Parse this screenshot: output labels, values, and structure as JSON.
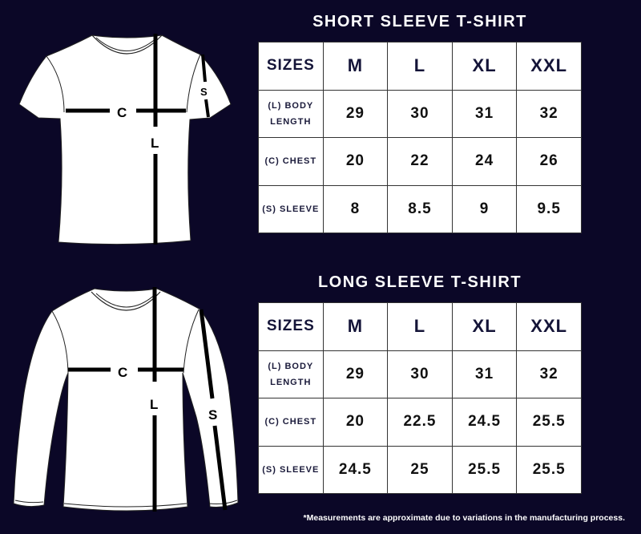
{
  "short_sleeve": {
    "title": "SHORT SLEEVE T-SHIRT",
    "diagram_labels": {
      "chest": "C",
      "length": "L",
      "sleeve": "S"
    },
    "headers": [
      "SIZES",
      "M",
      "L",
      "XL",
      "XXL"
    ],
    "rows": [
      {
        "label_line1": "(L) BODY",
        "label_line2": "LENGTH",
        "values": [
          "29",
          "30",
          "31",
          "32"
        ]
      },
      {
        "label_line1": "(C) CHEST",
        "label_line2": "",
        "values": [
          "20",
          "22",
          "24",
          "26"
        ]
      },
      {
        "label_line1": "(S) SLEEVE",
        "label_line2": "",
        "values": [
          "8",
          "8.5",
          "9",
          "9.5"
        ]
      }
    ]
  },
  "long_sleeve": {
    "title": "LONG SLEEVE T-SHIRT",
    "diagram_labels": {
      "chest": "C",
      "length": "L",
      "sleeve": "S"
    },
    "headers": [
      "SIZES",
      "M",
      "L",
      "XL",
      "XXL"
    ],
    "rows": [
      {
        "label_line1": "(L) BODY",
        "label_line2": "LENGTH",
        "values": [
          "29",
          "30",
          "31",
          "32"
        ]
      },
      {
        "label_line1": "(C) CHEST",
        "label_line2": "",
        "values": [
          "20",
          "22.5",
          "24.5",
          "25.5"
        ]
      },
      {
        "label_line1": "(S) SLEEVE",
        "label_line2": "",
        "values": [
          "24.5",
          "25",
          "25.5",
          "25.5"
        ]
      }
    ]
  },
  "footnote": "*Measurements are approximate due to variations in the manufacturing process.",
  "colors": {
    "background": "#0b0727",
    "table_bg": "#ffffff",
    "header_text": "#141438"
  }
}
